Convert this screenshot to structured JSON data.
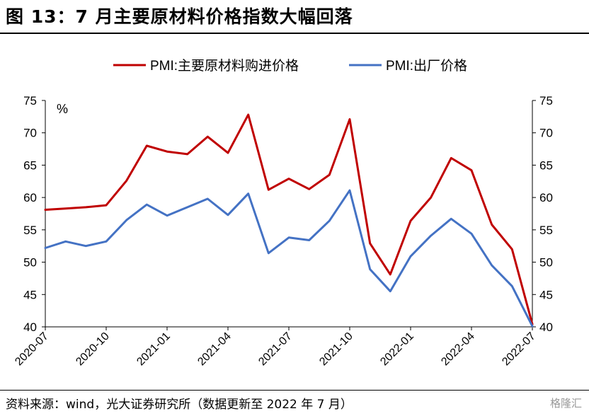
{
  "title": "图 13：7 月主要原材料价格指数大幅回落",
  "source": "资料来源：wind，光大证券研究所（数据更新至 2022 年 7 月）",
  "watermark": "格隆汇",
  "chart_data": {
    "type": "line",
    "title": "",
    "ylabel": "%",
    "ylim": [
      40,
      75
    ],
    "yticks": [
      40,
      45,
      50,
      55,
      60,
      65,
      70,
      75
    ],
    "x": [
      "2020-07",
      "2020-08",
      "2020-09",
      "2020-10",
      "2020-11",
      "2020-12",
      "2021-01",
      "2021-02",
      "2021-03",
      "2021-04",
      "2021-05",
      "2021-06",
      "2021-07",
      "2021-08",
      "2021-09",
      "2021-10",
      "2021-11",
      "2021-12",
      "2022-01",
      "2022-02",
      "2022-03",
      "2022-04",
      "2022-05",
      "2022-06",
      "2022-07"
    ],
    "xtick_labels": [
      "2020-07",
      "2020-10",
      "2021-01",
      "2021-04",
      "2021-07",
      "2021-10",
      "2022-01",
      "2022-04",
      "2022-07"
    ],
    "legend_position": "top",
    "grid": false,
    "secondary_y_axis": true,
    "series": [
      {
        "name": "PMI:主要原材料购进价格",
        "color": "#C00000",
        "values": [
          58.1,
          58.3,
          58.5,
          58.8,
          62.6,
          68.0,
          67.1,
          66.7,
          69.4,
          66.9,
          72.8,
          61.2,
          62.9,
          61.3,
          63.5,
          72.1,
          52.9,
          48.1,
          56.4,
          60.0,
          66.1,
          64.2,
          55.8,
          52.0,
          40.4
        ]
      },
      {
        "name": "PMI:出厂价格",
        "color": "#4472C4",
        "values": [
          52.2,
          53.2,
          52.5,
          53.2,
          56.5,
          58.9,
          57.2,
          58.5,
          59.8,
          57.3,
          60.6,
          51.4,
          53.8,
          53.4,
          56.4,
          61.1,
          48.9,
          45.5,
          50.9,
          54.1,
          56.7,
          54.4,
          49.5,
          46.3,
          40.1
        ]
      }
    ]
  }
}
